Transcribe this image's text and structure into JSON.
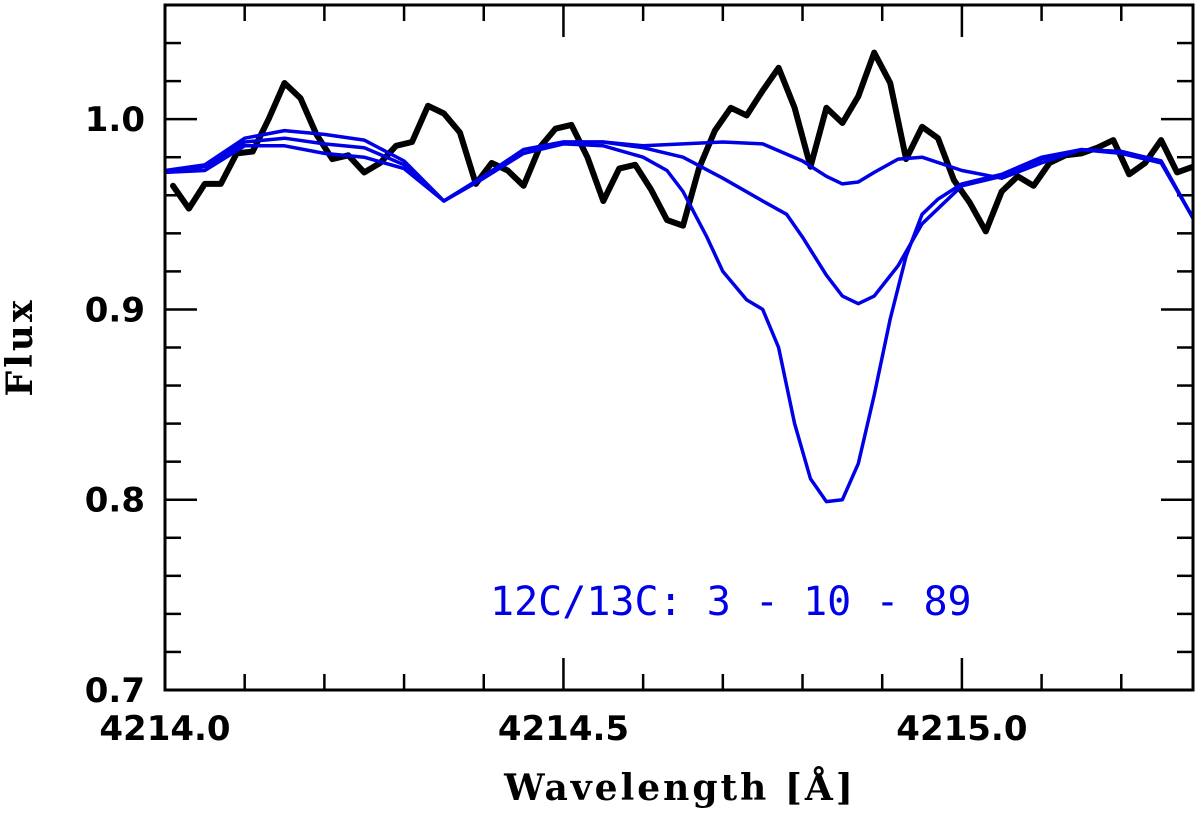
{
  "chart_data": {
    "type": "line",
    "title": "",
    "xlabel": "Wavelength [Å]",
    "ylabel": "Flux",
    "xlim": [
      4214.0,
      4215.29
    ],
    "ylim": [
      0.7,
      1.06
    ],
    "x_ticks": [
      {
        "value": 4214.0,
        "label": "4214.0"
      },
      {
        "value": 4214.5,
        "label": "4214.5"
      },
      {
        "value": 4215.0,
        "label": "4215.0"
      }
    ],
    "y_ticks": [
      {
        "value": 0.7,
        "label": "0.7"
      },
      {
        "value": 0.8,
        "label": "0.8"
      },
      {
        "value": 0.9,
        "label": "0.9"
      },
      {
        "value": 1.0,
        "label": "1.0"
      }
    ],
    "x_minor_step": 0.1,
    "y_minor_step": 0.02,
    "grid": false,
    "annotation": {
      "text": "12C/13C: 3 - 10 - 89",
      "color": "#0000e6"
    },
    "series": [
      {
        "color": "#000000",
        "x": [
          4214.01,
          4214.03,
          4214.05,
          4214.07,
          4214.09,
          4214.11,
          4214.13,
          4214.15,
          4214.17,
          4214.19,
          4214.21,
          4214.23,
          4214.25,
          4214.27,
          4214.29,
          4214.31,
          4214.33,
          4214.35,
          4214.37,
          4214.39,
          4214.41,
          4214.43,
          4214.45,
          4214.47,
          4214.49,
          4214.51,
          4214.53,
          4214.55,
          4214.57,
          4214.59,
          4214.61,
          4214.63,
          4214.65,
          4214.67,
          4214.69,
          4214.71,
          4214.73,
          4214.75,
          4214.77,
          4214.79,
          4214.81,
          4214.83,
          4214.85,
          4214.87,
          4214.89,
          4214.91,
          4214.93,
          4214.95,
          4214.97,
          4214.99,
          4215.01,
          4215.03,
          4215.05,
          4215.07,
          4215.09,
          4215.11,
          4215.13,
          4215.15,
          4215.17,
          4215.19,
          4215.21,
          4215.23,
          4215.25,
          4215.27,
          4215.29
        ],
        "y": [
          0.965,
          0.953,
          0.966,
          0.966,
          0.982,
          0.983,
          1.0,
          1.019,
          1.011,
          0.992,
          0.979,
          0.981,
          0.972,
          0.977,
          0.986,
          0.988,
          1.007,
          1.003,
          0.993,
          0.966,
          0.977,
          0.973,
          0.965,
          0.985,
          0.995,
          0.997,
          0.98,
          0.957,
          0.974,
          0.976,
          0.963,
          0.947,
          0.944,
          0.974,
          0.994,
          1.006,
          1.002,
          1.015,
          1.027,
          1.006,
          0.975,
          1.006,
          0.998,
          1.012,
          1.035,
          1.019,
          0.979,
          0.996,
          0.99,
          0.968,
          0.956,
          0.941,
          0.962,
          0.97,
          0.965,
          0.977,
          0.981,
          0.982,
          0.985,
          0.989,
          0.971,
          0.977,
          0.989,
          0.972,
          0.975
        ]
      },
      {
        "color": "#0000e6",
        "x": [
          4214.0,
          4214.05,
          4214.1,
          4214.15,
          4214.2,
          4214.25,
          4214.3,
          4214.35,
          4214.4,
          4214.45,
          4214.5,
          4214.55,
          4214.6,
          4214.65,
          4214.7,
          4214.75,
          4214.8,
          4214.83,
          4214.85,
          4214.87,
          4214.89,
          4214.92,
          4214.95,
          4215.0,
          4215.05,
          4215.1,
          4215.15,
          4215.2,
          4215.25,
          4215.29
        ],
        "y": [
          0.973,
          0.976,
          0.99,
          0.994,
          0.992,
          0.989,
          0.978,
          0.957,
          0.97,
          0.984,
          0.988,
          0.988,
          0.986,
          0.987,
          0.988,
          0.987,
          0.978,
          0.97,
          0.966,
          0.967,
          0.972,
          0.979,
          0.98,
          0.973,
          0.969,
          0.977,
          0.984,
          0.983,
          0.978,
          0.948
        ]
      },
      {
        "color": "#0000e6",
        "x": [
          4214.0,
          4214.05,
          4214.1,
          4214.15,
          4214.2,
          4214.25,
          4214.3,
          4214.35,
          4214.4,
          4214.45,
          4214.5,
          4214.55,
          4214.6,
          4214.65,
          4214.7,
          4214.75,
          4214.78,
          4214.8,
          4214.83,
          4214.85,
          4214.87,
          4214.89,
          4214.92,
          4214.95,
          4215.0,
          4215.05,
          4215.1,
          4215.15,
          4215.2,
          4215.25,
          4215.29
        ],
        "y": [
          0.972,
          0.975,
          0.988,
          0.99,
          0.987,
          0.985,
          0.976,
          0.957,
          0.97,
          0.984,
          0.988,
          0.988,
          0.985,
          0.98,
          0.969,
          0.957,
          0.95,
          0.938,
          0.918,
          0.907,
          0.903,
          0.907,
          0.923,
          0.945,
          0.965,
          0.97,
          0.979,
          0.984,
          0.983,
          0.978,
          0.948
        ]
      },
      {
        "color": "#0000e6",
        "x": [
          4214.0,
          4214.05,
          4214.1,
          4214.15,
          4214.2,
          4214.25,
          4214.3,
          4214.35,
          4214.4,
          4214.45,
          4214.5,
          4214.55,
          4214.6,
          4214.63,
          4214.65,
          4214.68,
          4214.7,
          4214.73,
          4214.75,
          4214.77,
          4214.79,
          4214.81,
          4214.83,
          4214.85,
          4214.87,
          4214.89,
          4214.91,
          4214.93,
          4214.95,
          4214.97,
          4215.0,
          4215.05,
          4215.1,
          4215.15,
          4215.2,
          4215.25,
          4215.29
        ],
        "y": [
          0.972,
          0.973,
          0.986,
          0.986,
          0.982,
          0.98,
          0.974,
          0.957,
          0.969,
          0.982,
          0.987,
          0.986,
          0.98,
          0.973,
          0.962,
          0.938,
          0.92,
          0.905,
          0.9,
          0.88,
          0.84,
          0.811,
          0.799,
          0.8,
          0.819,
          0.855,
          0.895,
          0.928,
          0.95,
          0.958,
          0.966,
          0.971,
          0.98,
          0.984,
          0.982,
          0.977,
          0.948
        ]
      }
    ]
  }
}
